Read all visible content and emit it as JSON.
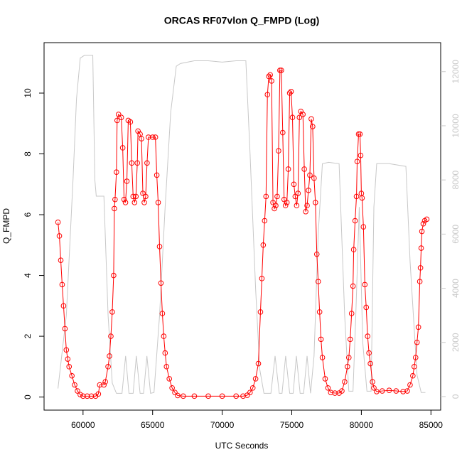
{
  "chart_data": {
    "type": "line",
    "title": "ORCAS RF07vlon Q_FMPD (Log)",
    "xlabel": "UTC Seconds",
    "ylabel": "Q_FMPD",
    "xlim": [
      57200,
      85700
    ],
    "ylim": [
      -0.43,
      11.66
    ],
    "y2lim": [
      -500,
      13070
    ],
    "xticks": [
      60000,
      65000,
      70000,
      75000,
      80000,
      85000
    ],
    "yticks": [
      0,
      2,
      4,
      6,
      8,
      10
    ],
    "y2ticks": [
      0,
      2000,
      4000,
      6000,
      8000,
      10000,
      12000
    ],
    "series": [
      {
        "color": "#ff0000",
        "marker": "circle",
        "axis": "y",
        "x": [
          58200,
          58300,
          58400,
          58500,
          58600,
          58700,
          58800,
          58900,
          59000,
          59200,
          59400,
          59600,
          59800,
          60000,
          60300,
          60600,
          60900,
          61100,
          61200,
          61500,
          61600,
          61800,
          61900,
          62000,
          62100,
          62200,
          62250,
          62300,
          62400,
          62450,
          62550,
          62750,
          62850,
          62950,
          63050,
          63150,
          63250,
          63400,
          63500,
          63600,
          63700,
          63800,
          63900,
          63950,
          64100,
          64200,
          64300,
          64400,
          64500,
          64600,
          64700,
          65000,
          65200,
          65300,
          65400,
          65500,
          65600,
          65700,
          65800,
          65900,
          66000,
          66200,
          66400,
          66600,
          66800,
          67200,
          68000,
          69000,
          70000,
          71000,
          71500,
          71800,
          72000,
          72200,
          72400,
          72600,
          72750,
          72850,
          72950,
          73050,
          73150,
          73250,
          73350,
          73450,
          73550,
          73650,
          73750,
          73850,
          73950,
          74050,
          74150,
          74250,
          74350,
          74450,
          74550,
          74650,
          74750,
          74850,
          74950,
          75050,
          75150,
          75250,
          75350,
          75450,
          75550,
          75650,
          75800,
          75900,
          76000,
          76100,
          76200,
          76300,
          76400,
          76500,
          76600,
          76700,
          76800,
          76900,
          77000,
          77100,
          77200,
          77400,
          77600,
          77800,
          78100,
          78400,
          78600,
          78800,
          79000,
          79100,
          79200,
          79300,
          79400,
          79450,
          79550,
          79650,
          79700,
          79800,
          79900,
          79950,
          80000,
          80050,
          80150,
          80250,
          80350,
          80450,
          80550,
          80650,
          80800,
          80900,
          81100,
          81500,
          82000,
          82500,
          83000,
          83300,
          83500,
          83700,
          83800,
          83900,
          84000,
          84100,
          84200,
          84250,
          84300,
          84350,
          84450,
          84550,
          84700
        ],
        "values": [
          5.75,
          5.3,
          4.5,
          3.7,
          3.0,
          2.25,
          1.55,
          1.25,
          1.0,
          0.7,
          0.4,
          0.2,
          0.08,
          0.03,
          0.03,
          0.03,
          0.03,
          0.1,
          0.4,
          0.4,
          0.5,
          1.0,
          1.35,
          2.0,
          2.8,
          4.0,
          6.2,
          6.5,
          7.4,
          9.1,
          9.3,
          9.2,
          8.2,
          6.5,
          6.4,
          7.1,
          9.1,
          9.05,
          7.7,
          6.6,
          6.4,
          6.6,
          7.7,
          8.75,
          8.65,
          8.5,
          6.7,
          6.4,
          6.6,
          7.7,
          8.55,
          8.55,
          8.55,
          7.3,
          6.4,
          4.95,
          3.75,
          2.75,
          2.0,
          1.45,
          1.0,
          0.6,
          0.3,
          0.15,
          0.05,
          0.03,
          0.03,
          0.03,
          0.03,
          0.03,
          0.03,
          0.06,
          0.15,
          0.3,
          0.6,
          1.1,
          2.8,
          3.9,
          5.0,
          5.8,
          6.6,
          9.95,
          10.55,
          10.6,
          10.4,
          6.4,
          6.2,
          6.3,
          6.6,
          8.1,
          10.75,
          10.75,
          8.7,
          6.5,
          6.3,
          6.4,
          7.5,
          10.0,
          10.05,
          9.2,
          7.0,
          6.6,
          6.3,
          6.7,
          9.2,
          9.4,
          9.3,
          7.5,
          6.1,
          6.3,
          6.8,
          7.3,
          9.15,
          8.9,
          7.2,
          6.4,
          4.7,
          3.8,
          2.8,
          1.9,
          1.3,
          0.6,
          0.3,
          0.15,
          0.13,
          0.13,
          0.2,
          0.5,
          1.0,
          1.3,
          1.9,
          2.75,
          3.65,
          4.85,
          5.8,
          6.6,
          7.75,
          8.65,
          8.65,
          7.95,
          6.7,
          6.55,
          5.6,
          3.7,
          2.95,
          2.0,
          1.45,
          1.1,
          0.5,
          0.3,
          0.18,
          0.2,
          0.22,
          0.2,
          0.18,
          0.2,
          0.4,
          0.7,
          1.0,
          1.3,
          1.8,
          2.3,
          3.8,
          4.25,
          4.9,
          5.45,
          5.7,
          5.8,
          5.85
        ]
      },
      {
        "color": "#c8c8c8",
        "axis": "y2",
        "x": [
          58200,
          58800,
          59280,
          59530,
          59800,
          60100,
          60700,
          60850,
          60950,
          61500,
          61800,
          62100,
          62400,
          62800,
          63060,
          63300,
          63600,
          63830,
          64100,
          64350,
          64590,
          64850,
          65100,
          65500,
          65900,
          66300,
          66700,
          67000,
          68000,
          69000,
          70000,
          71000,
          71700,
          72000,
          72400,
          72700,
          73000,
          73500,
          73800,
          74100,
          74300,
          74560,
          74850,
          75100,
          75330,
          75600,
          75850,
          76100,
          76350,
          76600,
          76900,
          77200,
          77650,
          78400,
          78800,
          79100,
          79400,
          79600,
          79850,
          80100,
          80400,
          80700,
          80900,
          81100,
          82000,
          83200,
          83500,
          84000,
          84300,
          84600
        ],
        "values": [
          300,
          3000,
          8000,
          11000,
          12500,
          12600,
          12600,
          8000,
          7400,
          7400,
          3000,
          500,
          120,
          120,
          1500,
          120,
          120,
          1500,
          120,
          120,
          1500,
          120,
          150,
          3000,
          7000,
          10500,
          12200,
          12300,
          12400,
          12400,
          12350,
          12400,
          12400,
          9000,
          4000,
          1000,
          120,
          120,
          1500,
          120,
          120,
          1500,
          120,
          120,
          1500,
          120,
          120,
          1500,
          120,
          1500,
          6000,
          8600,
          8650,
          8600,
          3000,
          200,
          200,
          3000,
          7000,
          2000,
          200,
          200,
          7000,
          8600,
          8600,
          8500,
          5000,
          800,
          150,
          150
        ]
      }
    ]
  }
}
